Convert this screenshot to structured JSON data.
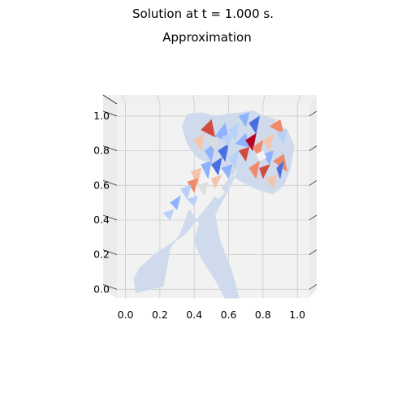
{
  "figure": {
    "suptitle": "Solution at t = 1.000 s.",
    "subtitle": "Approximation"
  },
  "chart_data": {
    "type": "surface",
    "title": "Approximation",
    "xlim": [
      -0.05,
      1.07
    ],
    "ylim": [
      -0.05,
      1.07
    ],
    "xticks": [
      "0.0",
      "0.2",
      "0.4",
      "0.6",
      "0.8",
      "1.0"
    ],
    "yticks": [
      "0.0",
      "0.2",
      "0.4",
      "0.6",
      "0.8",
      "1.0"
    ],
    "x_tick_values": [
      0,
      0.2,
      0.4,
      0.6,
      0.8,
      1.0
    ],
    "y_tick_values": [
      0,
      0.2,
      0.4,
      0.6,
      0.8,
      1.0
    ],
    "grid": true,
    "colormap": "coolwarm",
    "colors": {
      "base": "#cfdbec",
      "pane": "#f2f2f2",
      "pane_side": "#ebebeb",
      "grid": "#cbcbcb",
      "cool_strong": "#4a6fe3",
      "cool": "#8fb1fe",
      "cool_light": "#b9d0f9",
      "neutral": "#dcdddd",
      "warm_light": "#f4c5ad",
      "warm": "#f08a6c",
      "warm_strong": "#d24b40",
      "hot": "#b40426"
    },
    "domain_outline": [
      [
        0.35,
        0.32
      ],
      [
        0.18,
        0.21
      ],
      [
        0.08,
        0.12
      ],
      [
        0.05,
        0.06
      ],
      [
        0.06,
        -0.02
      ],
      [
        0.22,
        0.02
      ],
      [
        0.26,
        0.24
      ],
      [
        0.32,
        0.32
      ],
      [
        0.37,
        0.46
      ],
      [
        0.43,
        0.38
      ],
      [
        0.4,
        0.28
      ],
      [
        0.44,
        0.18
      ],
      [
        0.52,
        0.06
      ],
      [
        0.58,
        -0.05
      ],
      [
        0.66,
        -0.05
      ],
      [
        0.62,
        0.1
      ],
      [
        0.55,
        0.28
      ],
      [
        0.52,
        0.43
      ],
      [
        0.6,
        0.58
      ],
      [
        0.66,
        0.7
      ],
      [
        0.7,
        0.8
      ],
      [
        0.78,
        0.95
      ],
      [
        0.86,
        0.97
      ],
      [
        0.94,
        0.92
      ],
      [
        0.98,
        0.83
      ],
      [
        0.96,
        0.7
      ],
      [
        0.92,
        0.6
      ],
      [
        0.86,
        0.55
      ],
      [
        0.76,
        0.58
      ],
      [
        0.68,
        0.62
      ],
      [
        0.58,
        0.68
      ],
      [
        0.5,
        0.72
      ],
      [
        0.42,
        0.76
      ],
      [
        0.36,
        0.84
      ],
      [
        0.33,
        0.94
      ],
      [
        0.36,
        1.01
      ],
      [
        0.44,
        1.02
      ],
      [
        0.52,
        1.0
      ],
      [
        0.6,
        1.01
      ],
      [
        0.68,
        1.02
      ],
      [
        0.74,
        1.03
      ],
      [
        0.8,
        1.0
      ],
      [
        0.88,
        0.98
      ]
    ],
    "patches": [
      {
        "poly": [
          [
            0.44,
            0.92
          ],
          [
            0.5,
            0.98
          ],
          [
            0.52,
            0.88
          ]
        ],
        "c": "warm_strong"
      },
      {
        "poly": [
          [
            0.52,
            0.88
          ],
          [
            0.58,
            0.96
          ],
          [
            0.6,
            0.86
          ]
        ],
        "c": "cool"
      },
      {
        "poly": [
          [
            0.4,
            0.86
          ],
          [
            0.46,
            0.9
          ],
          [
            0.44,
            0.8
          ]
        ],
        "c": "warm_light"
      },
      {
        "poly": [
          [
            0.46,
            0.8
          ],
          [
            0.52,
            0.84
          ],
          [
            0.5,
            0.74
          ]
        ],
        "c": "cool"
      },
      {
        "poly": [
          [
            0.54,
            0.8
          ],
          [
            0.6,
            0.84
          ],
          [
            0.58,
            0.74
          ]
        ],
        "c": "cool_strong"
      },
      {
        "poly": [
          [
            0.6,
            0.92
          ],
          [
            0.66,
            0.96
          ],
          [
            0.64,
            0.86
          ]
        ],
        "c": "cool_light"
      },
      {
        "poly": [
          [
            0.66,
            1.0
          ],
          [
            0.72,
            1.02
          ],
          [
            0.7,
            0.94
          ]
        ],
        "c": "cool"
      },
      {
        "poly": [
          [
            0.72,
            0.96
          ],
          [
            0.78,
            1.0
          ],
          [
            0.76,
            0.9
          ]
        ],
        "c": "cool_strong"
      },
      {
        "poly": [
          [
            0.64,
            0.84
          ],
          [
            0.7,
            0.9
          ],
          [
            0.72,
            0.82
          ]
        ],
        "c": "cool"
      },
      {
        "poly": [
          [
            0.7,
            0.86
          ],
          [
            0.76,
            0.9
          ],
          [
            0.74,
            0.8
          ]
        ],
        "c": "hot"
      },
      {
        "poly": [
          [
            0.66,
            0.8
          ],
          [
            0.72,
            0.82
          ],
          [
            0.7,
            0.74
          ]
        ],
        "c": "warm_strong"
      },
      {
        "poly": [
          [
            0.74,
            0.82
          ],
          [
            0.8,
            0.86
          ],
          [
            0.78,
            0.76
          ]
        ],
        "c": "warm"
      },
      {
        "poly": [
          [
            0.8,
            0.86
          ],
          [
            0.86,
            0.9
          ],
          [
            0.84,
            0.8
          ]
        ],
        "c": "warm_light"
      },
      {
        "poly": [
          [
            0.84,
            0.94
          ],
          [
            0.9,
            0.98
          ],
          [
            0.92,
            0.9
          ]
        ],
        "c": "warm"
      },
      {
        "poly": [
          [
            0.88,
            0.9
          ],
          [
            0.94,
            0.92
          ],
          [
            0.92,
            0.84
          ]
        ],
        "c": "cool_light"
      },
      {
        "poly": [
          [
            0.8,
            0.78
          ],
          [
            0.86,
            0.8
          ],
          [
            0.84,
            0.72
          ]
        ],
        "c": "cool"
      },
      {
        "poly": [
          [
            0.86,
            0.74
          ],
          [
            0.92,
            0.78
          ],
          [
            0.94,
            0.68
          ]
        ],
        "c": "warm"
      },
      {
        "poly": [
          [
            0.88,
            0.7
          ],
          [
            0.92,
            0.74
          ],
          [
            0.9,
            0.64
          ]
        ],
        "c": "cool_strong"
      },
      {
        "poly": [
          [
            0.78,
            0.7
          ],
          [
            0.84,
            0.72
          ],
          [
            0.8,
            0.64
          ]
        ],
        "c": "warm_strong"
      },
      {
        "poly": [
          [
            0.72,
            0.7
          ],
          [
            0.78,
            0.74
          ],
          [
            0.76,
            0.64
          ]
        ],
        "c": "warm"
      },
      {
        "poly": [
          [
            0.82,
            0.64
          ],
          [
            0.88,
            0.66
          ],
          [
            0.86,
            0.58
          ]
        ],
        "c": "warm_light"
      },
      {
        "poly": [
          [
            0.6,
            0.76
          ],
          [
            0.66,
            0.8
          ],
          [
            0.64,
            0.7
          ]
        ],
        "c": "cool_light"
      },
      {
        "poly": [
          [
            0.56,
            0.7
          ],
          [
            0.62,
            0.72
          ],
          [
            0.6,
            0.64
          ]
        ],
        "c": "cool"
      },
      {
        "poly": [
          [
            0.5,
            0.72
          ],
          [
            0.56,
            0.76
          ],
          [
            0.54,
            0.66
          ]
        ],
        "c": "cool_strong"
      },
      {
        "poly": [
          [
            0.44,
            0.72
          ],
          [
            0.5,
            0.74
          ],
          [
            0.48,
            0.64
          ]
        ],
        "c": "cool"
      },
      {
        "poly": [
          [
            0.38,
            0.68
          ],
          [
            0.44,
            0.7
          ],
          [
            0.42,
            0.6
          ]
        ],
        "c": "warm_light"
      },
      {
        "poly": [
          [
            0.36,
            0.62
          ],
          [
            0.42,
            0.64
          ],
          [
            0.4,
            0.56
          ]
        ],
        "c": "warm"
      },
      {
        "poly": [
          [
            0.42,
            0.6
          ],
          [
            0.48,
            0.62
          ],
          [
            0.46,
            0.54
          ]
        ],
        "c": "neutral"
      },
      {
        "poly": [
          [
            0.5,
            0.64
          ],
          [
            0.56,
            0.66
          ],
          [
            0.52,
            0.58
          ]
        ],
        "c": "warm_light"
      },
      {
        "poly": [
          [
            0.32,
            0.58
          ],
          [
            0.38,
            0.6
          ],
          [
            0.36,
            0.52
          ]
        ],
        "c": "cool_light"
      },
      {
        "poly": [
          [
            0.26,
            0.5
          ],
          [
            0.32,
            0.54
          ],
          [
            0.3,
            0.46
          ]
        ],
        "c": "cool"
      },
      {
        "poly": [
          [
            0.36,
            0.52
          ],
          [
            0.42,
            0.54
          ],
          [
            0.4,
            0.48
          ]
        ],
        "c": "cool_light"
      },
      {
        "poly": [
          [
            0.22,
            0.44
          ],
          [
            0.28,
            0.46
          ],
          [
            0.26,
            0.4
          ]
        ],
        "c": "cool_light"
      },
      {
        "poly": [
          [
            0.56,
            0.88
          ],
          [
            0.62,
            0.9
          ],
          [
            0.6,
            0.82
          ]
        ],
        "c": "cool_light"
      },
      {
        "poly": [
          [
            0.48,
            0.86
          ],
          [
            0.54,
            0.88
          ],
          [
            0.52,
            0.8
          ]
        ],
        "c": "neutral"
      }
    ],
    "holes": [
      [
        [
          0.5,
          0.56
        ],
        [
          0.54,
          0.6
        ],
        [
          0.58,
          0.56
        ],
        [
          0.54,
          0.52
        ]
      ],
      [
        [
          0.76,
          0.78
        ],
        [
          0.8,
          0.8
        ],
        [
          0.82,
          0.76
        ],
        [
          0.78,
          0.74
        ]
      ]
    ]
  }
}
